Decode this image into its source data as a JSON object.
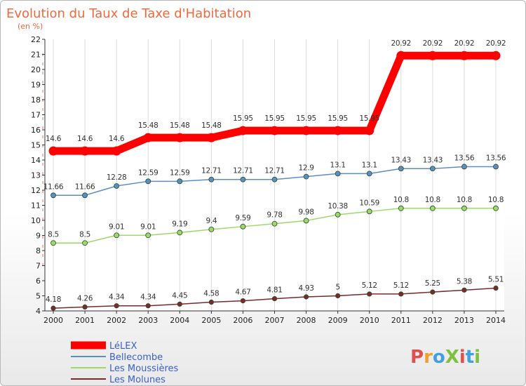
{
  "chart_data": {
    "type": "line",
    "title": "Evolution du Taux de Taxe d'Habitation",
    "subtitle": "(en %)",
    "x": [
      "2000",
      "2001",
      "2002",
      "2003",
      "2004",
      "2005",
      "2006",
      "2007",
      "2008",
      "2009",
      "2010",
      "2011",
      "2012",
      "2013",
      "2014"
    ],
    "ylim": [
      4,
      22
    ],
    "yticks": [
      4,
      5,
      6,
      7,
      8,
      9,
      10,
      11,
      12,
      13,
      14,
      15,
      16,
      17,
      18,
      19,
      20,
      21,
      22
    ],
    "grid": "vertical",
    "legend_position": "bottom-left",
    "series": [
      {
        "name": "LéLEX",
        "color": "#ff0000",
        "values": [
          14.6,
          14.6,
          14.6,
          15.48,
          15.48,
          15.48,
          15.95,
          15.95,
          15.95,
          15.95,
          15.95,
          20.92,
          20.92,
          20.92,
          20.92
        ],
        "labels": [
          "14.6",
          "14.6",
          "14.6",
          "15.48",
          "15.48",
          "15.48",
          "15.95",
          "15.95",
          "15.95",
          "15.95",
          "15.95",
          "20.92",
          "20.92",
          "20.92",
          "20.92"
        ]
      },
      {
        "name": "Bellecombe",
        "color": "#5b8fc4",
        "values": [
          11.66,
          11.66,
          12.28,
          12.59,
          12.59,
          12.71,
          12.71,
          12.71,
          12.9,
          13.1,
          13.1,
          13.43,
          13.43,
          13.56,
          13.56
        ],
        "labels": [
          "11.66",
          "11.66",
          "12.28",
          "12.59",
          "12.59",
          "12.71",
          "12.71",
          "12.71",
          "12.9",
          "13.1",
          "13.1",
          "13.43",
          "13.43",
          "13.56",
          "13.56"
        ]
      },
      {
        "name": "Les Moussières",
        "color": "#9ed86a",
        "values": [
          8.5,
          8.5,
          9.01,
          9.01,
          9.19,
          9.4,
          9.59,
          9.78,
          9.98,
          10.38,
          10.59,
          10.8,
          10.8,
          10.8,
          10.8
        ],
        "labels": [
          "8.5",
          "8.5",
          "9.01",
          "9.01",
          "9.19",
          "9.4",
          "9.59",
          "9.78",
          "9.98",
          "10.38",
          "10.59",
          "10.8",
          "10.8",
          "10.8",
          "10.8"
        ]
      },
      {
        "name": "Les Molunes",
        "color": "#7a2a2a",
        "values": [
          4.18,
          4.26,
          4.34,
          4.34,
          4.45,
          4.58,
          4.67,
          4.81,
          4.93,
          5,
          5.12,
          5.12,
          5.25,
          5.38,
          5.51
        ],
        "labels": [
          "4.18",
          "4.26",
          "4.34",
          "4.34",
          "4.45",
          "4.58",
          "4.67",
          "4.81",
          "4.93",
          "5",
          "5.12",
          "5.12",
          "5.25",
          "5.38",
          "5.51"
        ]
      }
    ]
  },
  "logo": {
    "text": "ProXiti",
    "colors": [
      "#e05050",
      "#f0a030",
      "#40a0e0",
      "#80c040",
      "#e05050",
      "#40a0e0",
      "#80c040"
    ]
  }
}
